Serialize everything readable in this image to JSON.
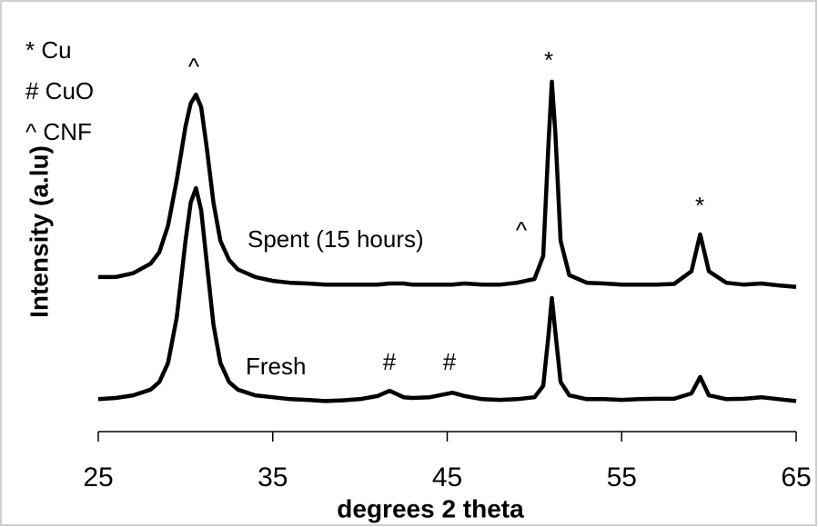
{
  "chart_data": {
    "type": "line",
    "xlabel": "degrees 2 theta",
    "ylabel": "Intensity (a.lu)",
    "x": [
      25,
      26,
      27,
      28,
      28.5,
      29,
      29.5,
      30,
      30.3,
      30.6,
      30.9,
      31.2,
      31.6,
      32,
      32.5,
      33,
      34,
      35,
      36,
      37,
      38,
      39,
      40,
      41,
      41.7,
      42.5,
      43,
      44,
      45.3,
      46,
      47,
      48,
      49,
      50,
      50.5,
      50.8,
      51,
      51.2,
      51.5,
      52,
      53,
      54,
      55,
      56,
      57,
      58,
      59,
      59.5,
      60,
      61,
      62,
      63,
      64,
      65
    ],
    "series": [
      {
        "name": "Spent (15 hours)",
        "color": "#000000",
        "values": [
          40.5,
          40.5,
          41.5,
          44,
          47,
          54,
          66,
          80,
          86,
          88.3,
          85,
          75,
          60,
          50,
          45,
          42.5,
          40.5,
          39.5,
          39,
          38.8,
          38.5,
          38.5,
          38.5,
          38.5,
          38.8,
          38.8,
          38.5,
          38.5,
          38.5,
          38.8,
          38.5,
          38.5,
          39,
          40,
          46,
          75,
          91.7,
          78,
          50,
          41,
          39,
          38.8,
          38.5,
          38.5,
          38.5,
          38.7,
          42,
          51.7,
          42,
          39,
          38.5,
          38.8,
          38.3,
          37.9
        ]
      },
      {
        "name": "Fresh",
        "color": "#000000",
        "values": [
          8.5,
          8.8,
          9.5,
          11,
          13,
          18,
          30,
          50,
          60,
          63.8,
          58,
          45,
          28,
          18,
          13,
          11,
          9.5,
          9,
          8.5,
          8.3,
          8,
          8.2,
          8.5,
          9.3,
          10.7,
          9,
          8.8,
          9,
          10.2,
          9.3,
          8.5,
          8.3,
          8.5,
          9,
          12,
          25,
          35,
          26,
          13,
          9.5,
          8.5,
          8.5,
          8.3,
          8.5,
          8.6,
          8.6,
          10,
          14.3,
          9.5,
          8.5,
          8.6,
          9,
          8.5,
          8
        ]
      }
    ],
    "xlim": [
      25,
      65
    ],
    "xticks": [
      25,
      35,
      45,
      55,
      65
    ],
    "ylim": [
      0,
      100
    ],
    "legend_notes": [
      "* Cu",
      "# CuO",
      "^ CNF"
    ],
    "annotations": [
      "^",
      "*",
      "*",
      "^",
      "#",
      "#"
    ]
  }
}
